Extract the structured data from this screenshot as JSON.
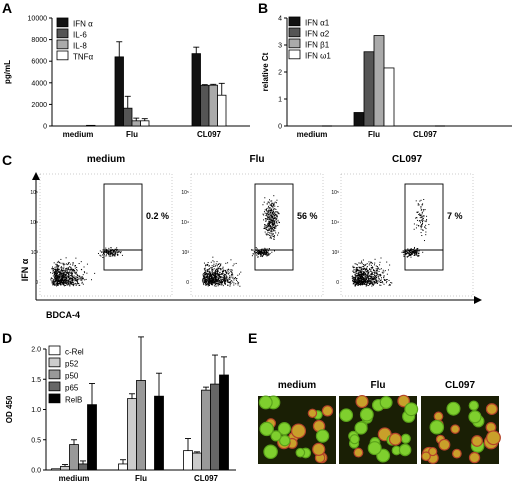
{
  "panel_labels": {
    "a": "A",
    "b": "B",
    "c": "C",
    "d": "D",
    "e": "E"
  },
  "chart_data": [
    {
      "id": "A",
      "type": "bar",
      "categories": [
        "medium",
        "Flu",
        "CL097"
      ],
      "ylabel": "pg/mL",
      "ylim": [
        0,
        10000
      ],
      "yticks": [
        0,
        2000,
        4000,
        6000,
        8000,
        10000
      ],
      "legend_position": "top-left",
      "series": [
        {
          "name": "IFN α",
          "color": "#111111",
          "values": [
            0,
            6400,
            6700
          ],
          "errors": [
            0,
            1400,
            600
          ]
        },
        {
          "name": "IL-6",
          "color": "#555555",
          "values": [
            0,
            1650,
            3750
          ],
          "errors": [
            0,
            1100,
            80
          ]
        },
        {
          "name": "IL-8",
          "color": "#aaaaaa",
          "values": [
            0,
            480,
            3780
          ],
          "errors": [
            0,
            250,
            80
          ]
        },
        {
          "name": "TNFα",
          "color": "#ffffff",
          "values": [
            60,
            480,
            2850
          ],
          "errors": [
            0,
            200,
            1100
          ]
        }
      ]
    },
    {
      "id": "B",
      "type": "bar",
      "categories": [
        "medium",
        "Flu",
        "CL097"
      ],
      "ylabel": "relative Ct",
      "ylim": [
        0,
        4
      ],
      "yticks": [
        0,
        1,
        2,
        3,
        4
      ],
      "legend_position": "top-left",
      "series": [
        {
          "name": "IFN α1",
          "color": "#111111",
          "values": [
            0,
            0.5,
            0
          ]
        },
        {
          "name": "IFN α2",
          "color": "#555555",
          "values": [
            0,
            2.75,
            0
          ]
        },
        {
          "name": "IFN β1",
          "color": "#aaaaaa",
          "values": [
            0,
            3.35,
            0
          ]
        },
        {
          "name": "IFN ω1",
          "color": "#ffffff",
          "values": [
            0,
            2.15,
            0
          ]
        }
      ]
    },
    {
      "id": "D",
      "type": "bar",
      "categories": [
        "medium",
        "Flu",
        "CL097"
      ],
      "ylabel": "OD 450",
      "ylim": [
        0,
        2.0
      ],
      "yticks": [
        0.0,
        0.5,
        1.0,
        1.5,
        2.0
      ],
      "legend_position": "top-left",
      "series": [
        {
          "name": "c-Rel",
          "color": "#ffffff",
          "values": [
            0.02,
            0.1,
            0.32
          ],
          "errors": [
            0,
            0.07,
            0.2
          ]
        },
        {
          "name": "p52",
          "color": "#cccccc",
          "values": [
            0.06,
            1.18,
            0.28
          ],
          "errors": [
            0.03,
            0.08,
            0.02
          ]
        },
        {
          "name": "p50",
          "color": "#999999",
          "values": [
            0.42,
            1.48,
            1.32
          ],
          "errors": [
            0.08,
            0.72,
            0.05
          ]
        },
        {
          "name": "p65",
          "color": "#666666",
          "values": [
            0.1,
            0,
            1.42
          ],
          "errors": [
            0.05,
            0,
            0.48
          ]
        },
        {
          "name": "RelB",
          "color": "#000000",
          "values": [
            1.08,
            1.22,
            1.57
          ],
          "errors": [
            0.35,
            0.38,
            0.3
          ]
        }
      ]
    }
  ],
  "panel_c": {
    "plots": [
      {
        "title": "medium",
        "percent": "0.2 %"
      },
      {
        "title": "Flu",
        "percent": "56 %"
      },
      {
        "title": "CL097",
        "percent": "7 %"
      }
    ],
    "ylabel": "IFN α",
    "xlabel": "BDCA-4"
  },
  "panel_e": {
    "images": [
      {
        "title": "medium"
      },
      {
        "title": "Flu"
      },
      {
        "title": "CL097"
      }
    ]
  }
}
